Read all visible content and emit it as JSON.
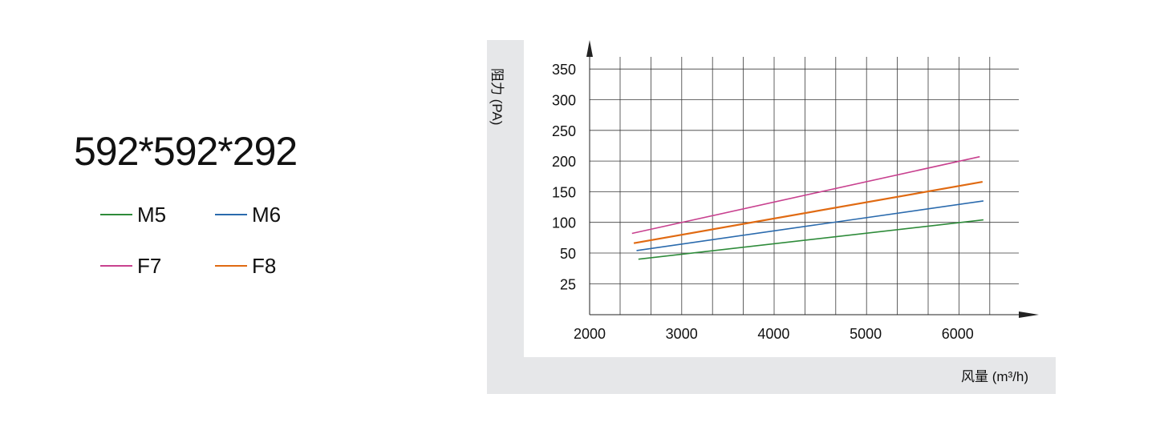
{
  "size_label": "592*592*292",
  "legend": [
    {
      "name": "M5",
      "color": "#2e8b3a"
    },
    {
      "name": "M6",
      "color": "#2a6aad"
    },
    {
      "name": "F7",
      "color": "#c8418f"
    },
    {
      "name": "F8",
      "color": "#e06a12"
    }
  ],
  "chart_data": {
    "type": "line",
    "xlabel": "风量 (m³/h)",
    "ylabel": "阻力 (PA)",
    "x_ticks": [
      2000,
      3000,
      4000,
      5000,
      6000
    ],
    "y_ticks": [
      25,
      50,
      100,
      150,
      200,
      250,
      300,
      350
    ],
    "grid": true,
    "series": [
      {
        "name": "M5",
        "color": "#2e8b3a",
        "x": [
          2530,
          6280
        ],
        "y": [
          45,
          104
        ]
      },
      {
        "name": "M6",
        "color": "#2a6aad",
        "x": [
          2510,
          6280
        ],
        "y": [
          54,
          135
        ]
      },
      {
        "name": "F7",
        "color": "#c8418f",
        "x": [
          2460,
          6240
        ],
        "y": [
          82,
          207
        ]
      },
      {
        "name": "F8",
        "color": "#e06a12",
        "x": [
          2480,
          6270
        ],
        "y": [
          66,
          166
        ]
      }
    ]
  }
}
